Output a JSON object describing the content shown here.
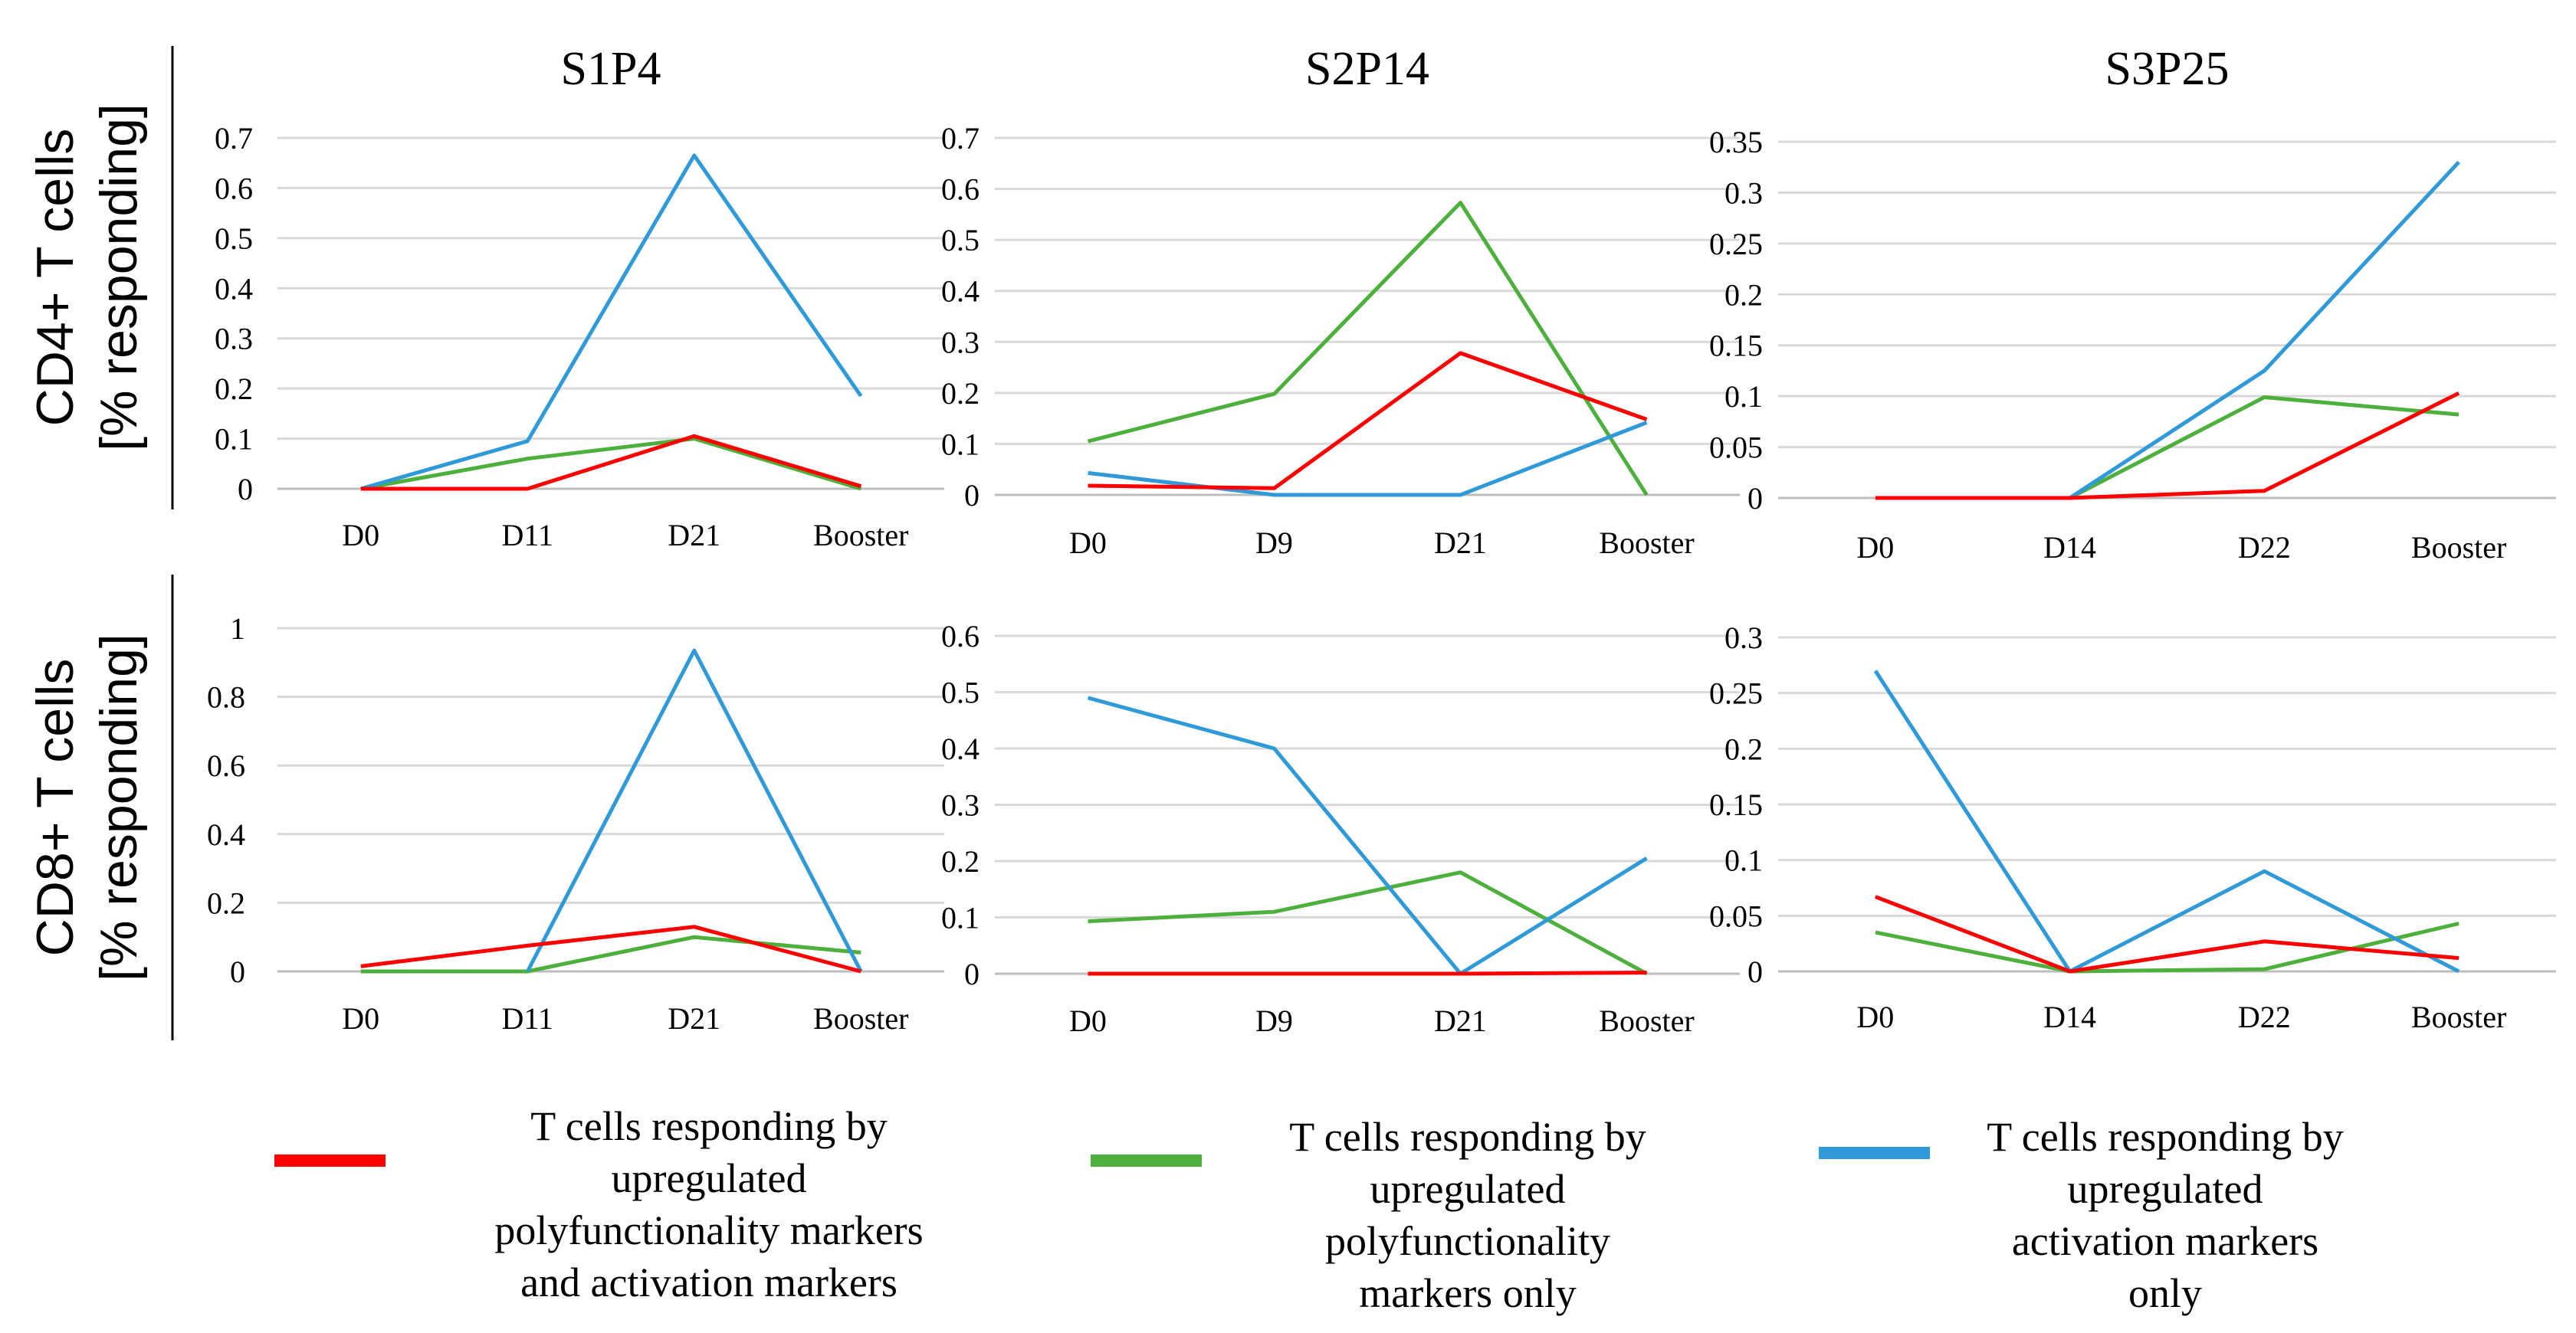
{
  "rows": [
    {
      "label_line1": "CD4+ T cells",
      "label_line2": "[% responding]"
    },
    {
      "label_line1": "CD8+ T cells",
      "label_line2": "[% responding]"
    }
  ],
  "legend": [
    {
      "color": "#ff0000",
      "lines": [
        "T cells responding by",
        "upregulated",
        "polyfunctionality markers",
        "and activation markers"
      ]
    },
    {
      "color": "#4daf3c",
      "lines": [
        "T cells responding by",
        "upregulated",
        "polyfunctionality",
        "markers only"
      ]
    },
    {
      "color": "#2f9ad7",
      "lines": [
        "T cells responding by",
        "upregulated",
        "activation markers",
        "only"
      ]
    }
  ],
  "chart_data": [
    {
      "type": "line",
      "title": "S1P4",
      "row": "CD4+ T cells [% responding]",
      "categories": [
        "D0",
        "D11",
        "D21",
        "Booster"
      ],
      "ylim": [
        0,
        0.7
      ],
      "yticks": [
        "0",
        "0.1",
        "0.2",
        "0.3",
        "0.4",
        "0.5",
        "0.6",
        "0.7"
      ],
      "series": [
        {
          "name": "T cells responding by upregulated polyfunctionality markers and activation markers",
          "color": "#ff0000",
          "values": [
            0,
            0,
            0.105,
            0.005
          ]
        },
        {
          "name": "T cells responding by upregulated polyfunctionality markers only",
          "color": "#4daf3c",
          "values": [
            0,
            0.06,
            0.1,
            0
          ]
        },
        {
          "name": "T cells responding by upregulated activation markers only",
          "color": "#2f9ad7",
          "values": [
            0,
            0.095,
            0.665,
            0.185
          ]
        }
      ]
    },
    {
      "type": "line",
      "title": "S2P14",
      "row": "CD4+ T cells [% responding]",
      "categories": [
        "D0",
        "D9",
        "D21",
        "Booster"
      ],
      "ylim": [
        0,
        0.7
      ],
      "yticks": [
        "0",
        "0.1",
        "0.2",
        "0.3",
        "0.4",
        "0.5",
        "0.6",
        "0.7"
      ],
      "series": [
        {
          "name": "T cells responding by upregulated polyfunctionality markers and activation markers",
          "color": "#ff0000",
          "values": [
            0.018,
            0.013,
            0.278,
            0.148
          ]
        },
        {
          "name": "T cells responding by upregulated polyfunctionality markers only",
          "color": "#4daf3c",
          "values": [
            0.105,
            0.198,
            0.573,
            0
          ]
        },
        {
          "name": "T cells responding by upregulated activation markers only",
          "color": "#2f9ad7",
          "values": [
            0.043,
            0,
            0,
            0.142
          ]
        }
      ]
    },
    {
      "type": "line",
      "title": "S3P25",
      "row": "CD4+ T cells [% responding]",
      "categories": [
        "D0",
        "D14",
        "D22",
        "Booster"
      ],
      "ylim": [
        0,
        0.35
      ],
      "yticks": [
        "0",
        "0.05",
        "0.1",
        "0.15",
        "0.2",
        "0.25",
        "0.3",
        "0.35"
      ],
      "series": [
        {
          "name": "T cells responding by upregulated polyfunctionality markers and activation markers",
          "color": "#ff0000",
          "values": [
            0,
            0,
            0.007,
            0.103
          ]
        },
        {
          "name": "T cells responding by upregulated polyfunctionality markers only",
          "color": "#4daf3c",
          "values": [
            null,
            0,
            0.099,
            0.082
          ]
        },
        {
          "name": "T cells responding by upregulated activation markers only",
          "color": "#2f9ad7",
          "values": [
            null,
            0,
            0.125,
            0.33
          ]
        }
      ]
    },
    {
      "type": "line",
      "title": "",
      "row": "CD8+ T cells [% responding]",
      "categories": [
        "D0",
        "D11",
        "D21",
        "Booster"
      ],
      "ylim": [
        0,
        1
      ],
      "yticks": [
        "0",
        "0.2",
        "0.4",
        "0.6",
        "0.8",
        "1"
      ],
      "series": [
        {
          "name": "T cells responding by upregulated polyfunctionality markers and activation markers",
          "color": "#ff0000",
          "values": [
            0.015,
            0.075,
            0.13,
            0
          ]
        },
        {
          "name": "T cells responding by upregulated polyfunctionality markers only",
          "color": "#4daf3c",
          "values": [
            0,
            0,
            0.1,
            0.055
          ]
        },
        {
          "name": "T cells responding by upregulated activation markers only",
          "color": "#2f9ad7",
          "values": [
            null,
            0,
            0.935,
            0
          ]
        }
      ]
    },
    {
      "type": "line",
      "title": "",
      "row": "CD8+ T cells [% responding]",
      "categories": [
        "D0",
        "D9",
        "D21",
        "Booster"
      ],
      "ylim": [
        0,
        0.6
      ],
      "yticks": [
        "0",
        "0.1",
        "0.2",
        "0.3",
        "0.4",
        "0.5",
        "0.6"
      ],
      "series": [
        {
          "name": "T cells responding by upregulated polyfunctionality markers and activation markers",
          "color": "#ff0000",
          "values": [
            0,
            0,
            0,
            0.002
          ]
        },
        {
          "name": "T cells responding by upregulated polyfunctionality markers only",
          "color": "#4daf3c",
          "values": [
            0.093,
            0.11,
            0.18,
            0
          ]
        },
        {
          "name": "T cells responding by upregulated activation markers only",
          "color": "#2f9ad7",
          "values": [
            0.49,
            0.4,
            0,
            0.205
          ]
        }
      ]
    },
    {
      "type": "line",
      "title": "",
      "row": "CD8+ T cells [% responding]",
      "categories": [
        "D0",
        "D14",
        "D22",
        "Booster"
      ],
      "ylim": [
        0,
        0.3
      ],
      "yticks": [
        "0",
        "0.05",
        "0.1",
        "0.15",
        "0.2",
        "0.25",
        "0.3"
      ],
      "series": [
        {
          "name": "T cells responding by upregulated polyfunctionality markers and activation markers",
          "color": "#ff0000",
          "values": [
            0.067,
            0,
            0.027,
            0.012
          ]
        },
        {
          "name": "T cells responding by upregulated polyfunctionality markers only",
          "color": "#4daf3c",
          "values": [
            0.035,
            0,
            0.002,
            0.043
          ]
        },
        {
          "name": "T cells responding by upregulated activation markers only",
          "color": "#2f9ad7",
          "values": [
            0.27,
            0,
            0.09,
            0
          ]
        }
      ]
    }
  ]
}
